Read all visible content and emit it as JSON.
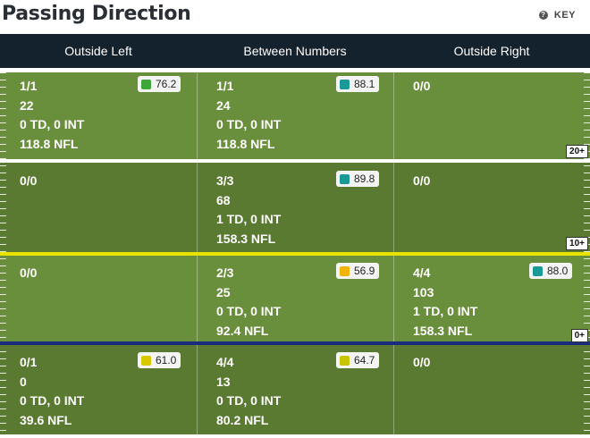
{
  "header": {
    "title": "Passing Direction",
    "key_label": "KEY",
    "key_icon": "question-circle-icon"
  },
  "columns": [
    "Outside Left",
    "Between Numbers",
    "Outside Right"
  ],
  "yard_labels": [
    "20+",
    "10+",
    "0+"
  ],
  "rows": [
    [
      {
        "comp": "1/1",
        "yards": "22",
        "td_int": "0 TD, 0 INT",
        "rating": "118.8 NFL",
        "grade": "76.2",
        "color": "#3fa73a"
      },
      {
        "comp": "1/1",
        "yards": "24",
        "td_int": "0 TD, 0 INT",
        "rating": "118.8 NFL",
        "grade": "88.1",
        "color": "#1a9a96"
      },
      {
        "comp": "0/0"
      }
    ],
    [
      {
        "comp": "0/0"
      },
      {
        "comp": "3/3",
        "yards": "68",
        "td_int": "1 TD, 0 INT",
        "rating": "158.3 NFL",
        "grade": "89.8",
        "color": "#1a9a96"
      },
      {
        "comp": "0/0"
      }
    ],
    [
      {
        "comp": "0/0"
      },
      {
        "comp": "2/3",
        "yards": "25",
        "td_int": "0 TD, 0 INT",
        "rating": "92.4 NFL",
        "grade": "56.9",
        "color": "#f2b400"
      },
      {
        "comp": "4/4",
        "yards": "103",
        "td_int": "1 TD, 0 INT",
        "rating": "158.3 NFL",
        "grade": "88.0",
        "color": "#1a9a96"
      }
    ],
    [
      {
        "comp": "0/1",
        "yards": "0",
        "td_int": "0 TD, 0 INT",
        "rating": "39.6 NFL",
        "grade": "61.0",
        "color": "#d8c800"
      },
      {
        "comp": "4/4",
        "yards": "13",
        "td_int": "0 TD, 0 INT",
        "rating": "80.2 NFL",
        "grade": "64.7",
        "color": "#c9c400"
      },
      {
        "comp": "0/0"
      }
    ]
  ]
}
